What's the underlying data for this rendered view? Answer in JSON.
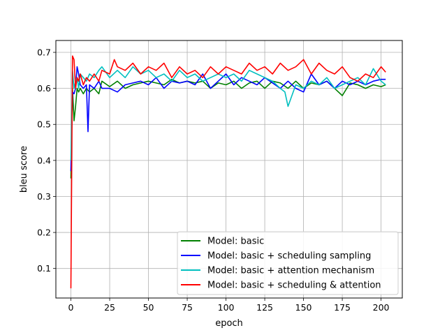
{
  "chart_data": {
    "type": "line",
    "title": "",
    "xlabel": "epoch",
    "ylabel": "bleu score",
    "xlim": [
      -9.7,
      213.7
    ],
    "ylim": [
      0.018,
      0.733
    ],
    "xticks": [
      0,
      25,
      50,
      75,
      100,
      125,
      150,
      175,
      200
    ],
    "yticks": [
      0.1,
      0.2,
      0.3,
      0.4,
      0.5,
      0.6,
      0.7
    ],
    "ytick_labels": [
      "0.1",
      "0.2",
      "0.3",
      "0.4",
      "0.5",
      "0.6",
      "0.7"
    ],
    "grid": true,
    "legend_position": "lower-right",
    "series": [
      {
        "name": "Model: basic",
        "color": "#008000",
        "x": [
          0,
          1,
          2,
          3,
          4,
          5,
          6,
          8,
          10,
          12,
          15,
          18,
          20,
          25,
          30,
          35,
          40,
          45,
          50,
          55,
          60,
          65,
          70,
          75,
          80,
          85,
          90,
          95,
          100,
          105,
          110,
          115,
          120,
          125,
          130,
          135,
          140,
          145,
          150,
          155,
          160,
          165,
          170,
          175,
          180,
          185,
          190,
          195,
          200,
          203
        ],
        "y": [
          0.35,
          0.6,
          0.51,
          0.55,
          0.6,
          0.59,
          0.6,
          0.585,
          0.6,
          0.59,
          0.6,
          0.585,
          0.62,
          0.605,
          0.62,
          0.6,
          0.61,
          0.615,
          0.62,
          0.615,
          0.61,
          0.625,
          0.615,
          0.62,
          0.615,
          0.62,
          0.6,
          0.615,
          0.61,
          0.62,
          0.6,
          0.615,
          0.62,
          0.6,
          0.62,
          0.615,
          0.6,
          0.62,
          0.6,
          0.615,
          0.61,
          0.62,
          0.6,
          0.58,
          0.615,
          0.61,
          0.6,
          0.61,
          0.605,
          0.61
        ]
      },
      {
        "name": "Model: basic + scheduling sampling",
        "color": "#0000ff",
        "x": [
          0,
          1,
          2,
          3,
          4,
          5,
          6,
          8,
          10,
          11,
          12,
          15,
          18,
          20,
          25,
          30,
          35,
          40,
          45,
          50,
          55,
          60,
          65,
          70,
          75,
          80,
          85,
          90,
          95,
          100,
          105,
          110,
          115,
          120,
          125,
          130,
          135,
          140,
          145,
          150,
          155,
          160,
          165,
          170,
          175,
          180,
          185,
          190,
          195,
          200,
          203
        ],
        "y": [
          0.37,
          0.59,
          0.585,
          0.6,
          0.66,
          0.64,
          0.61,
          0.6,
          0.61,
          0.48,
          0.61,
          0.6,
          0.62,
          0.6,
          0.6,
          0.59,
          0.61,
          0.615,
          0.62,
          0.61,
          0.63,
          0.6,
          0.62,
          0.615,
          0.62,
          0.61,
          0.64,
          0.6,
          0.62,
          0.64,
          0.61,
          0.63,
          0.62,
          0.61,
          0.63,
          0.615,
          0.6,
          0.62,
          0.6,
          0.59,
          0.64,
          0.61,
          0.62,
          0.6,
          0.62,
          0.61,
          0.62,
          0.61,
          0.62,
          0.625,
          0.625
        ]
      },
      {
        "name": "Model: basic + attention mechanism",
        "color": "#00bfbf",
        "x": [
          0,
          1,
          2,
          3,
          4,
          5,
          6,
          8,
          10,
          12,
          15,
          18,
          20,
          25,
          30,
          35,
          40,
          45,
          50,
          55,
          60,
          65,
          70,
          75,
          80,
          85,
          90,
          95,
          100,
          105,
          110,
          115,
          120,
          125,
          130,
          135,
          138,
          140,
          145,
          150,
          155,
          160,
          165,
          170,
          175,
          180,
          185,
          190,
          195,
          200,
          203
        ],
        "y": [
          0.4,
          0.65,
          0.6,
          0.62,
          0.63,
          0.6,
          0.64,
          0.63,
          0.62,
          0.64,
          0.63,
          0.65,
          0.66,
          0.63,
          0.65,
          0.63,
          0.66,
          0.64,
          0.65,
          0.63,
          0.64,
          0.62,
          0.65,
          0.63,
          0.64,
          0.62,
          0.63,
          0.64,
          0.63,
          0.64,
          0.62,
          0.65,
          0.64,
          0.63,
          0.62,
          0.6,
          0.59,
          0.55,
          0.61,
          0.6,
          0.62,
          0.61,
          0.63,
          0.6,
          0.61,
          0.62,
          0.63,
          0.61,
          0.655,
          0.62,
          0.61
        ]
      },
      {
        "name": "Model: basic + scheduling & attention",
        "color": "#ff0000",
        "x": [
          0,
          1,
          2,
          3,
          4,
          5,
          6,
          8,
          10,
          12,
          15,
          18,
          20,
          25,
          28,
          30,
          35,
          40,
          45,
          50,
          55,
          60,
          65,
          70,
          75,
          80,
          85,
          90,
          95,
          100,
          105,
          110,
          115,
          120,
          125,
          130,
          135,
          140,
          145,
          150,
          155,
          160,
          165,
          170,
          175,
          180,
          185,
          190,
          195,
          200,
          203
        ],
        "y": [
          0.045,
          0.69,
          0.68,
          0.6,
          0.63,
          0.62,
          0.64,
          0.61,
          0.63,
          0.62,
          0.64,
          0.62,
          0.65,
          0.64,
          0.68,
          0.66,
          0.65,
          0.67,
          0.64,
          0.66,
          0.65,
          0.67,
          0.63,
          0.66,
          0.64,
          0.65,
          0.63,
          0.66,
          0.64,
          0.66,
          0.65,
          0.64,
          0.67,
          0.65,
          0.66,
          0.64,
          0.67,
          0.65,
          0.66,
          0.68,
          0.64,
          0.67,
          0.65,
          0.64,
          0.66,
          0.63,
          0.62,
          0.64,
          0.63,
          0.66,
          0.645
        ]
      }
    ]
  }
}
